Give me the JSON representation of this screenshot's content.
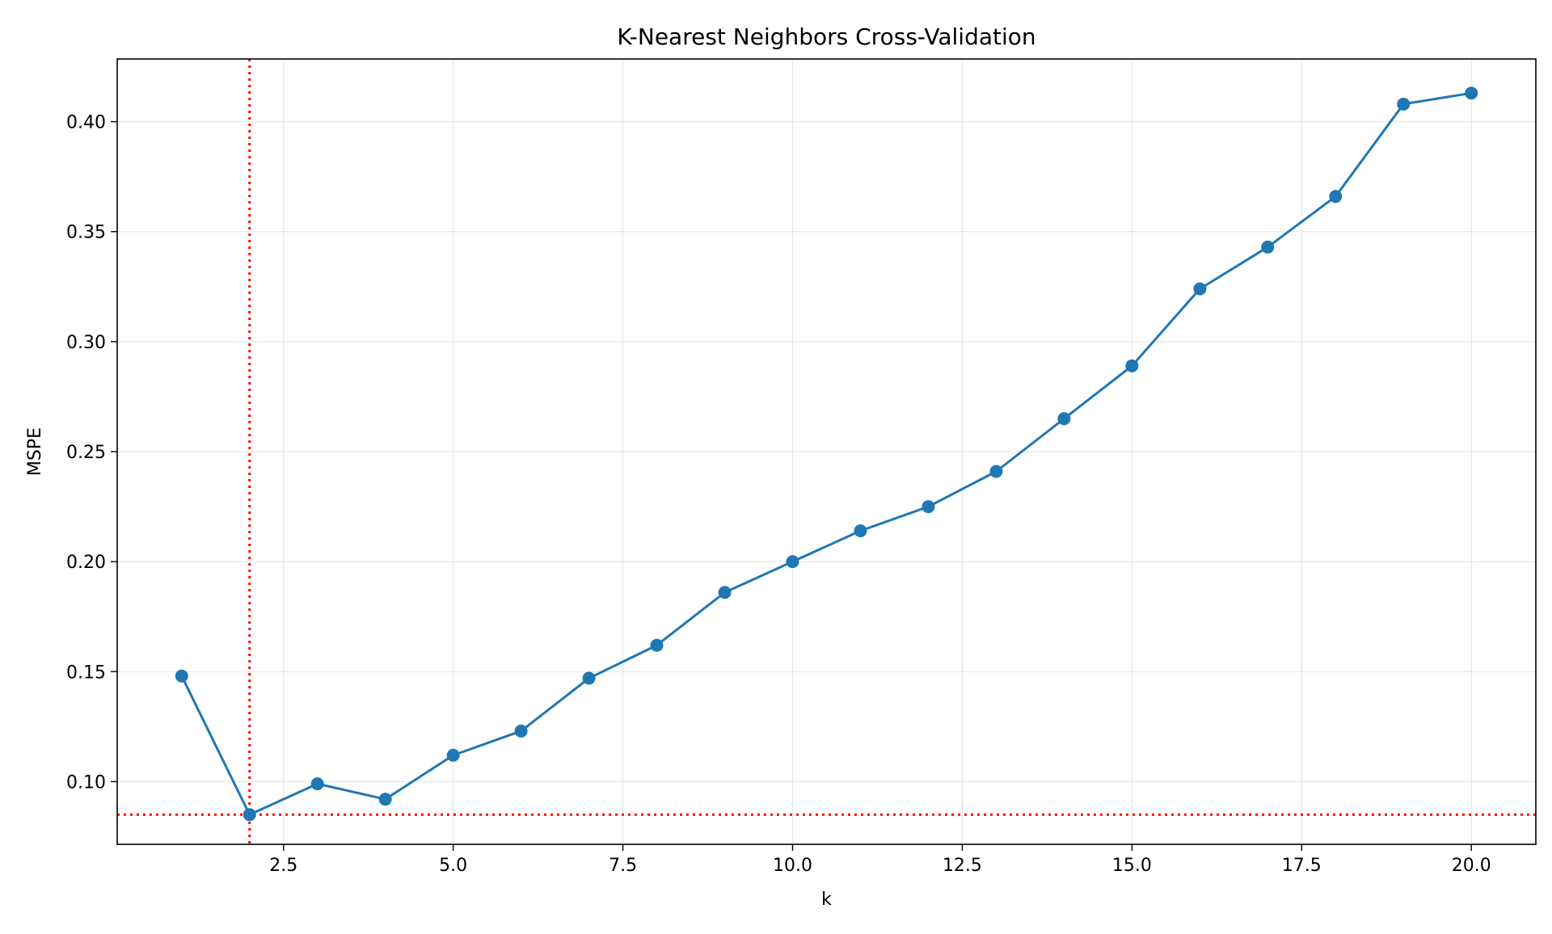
{
  "chart_data": {
    "type": "line",
    "title": "K-Nearest Neighbors Cross-Validation",
    "xlabel": "k",
    "ylabel": "MSPE",
    "xlim": [
      0.05,
      20.95
    ],
    "ylim": [
      0.0715,
      0.4285
    ],
    "x_ticks": [
      {
        "value": 2.5,
        "label": "2.5"
      },
      {
        "value": 5.0,
        "label": "5.0"
      },
      {
        "value": 7.5,
        "label": "7.5"
      },
      {
        "value": 10.0,
        "label": "10.0"
      },
      {
        "value": 12.5,
        "label": "12.5"
      },
      {
        "value": 15.0,
        "label": "15.0"
      },
      {
        "value": 17.5,
        "label": "17.5"
      },
      {
        "value": 20.0,
        "label": "20.0"
      }
    ],
    "y_ticks": [
      {
        "value": 0.1,
        "label": "0.10"
      },
      {
        "value": 0.15,
        "label": "0.15"
      },
      {
        "value": 0.2,
        "label": "0.20"
      },
      {
        "value": 0.25,
        "label": "0.25"
      },
      {
        "value": 0.3,
        "label": "0.30"
      },
      {
        "value": 0.35,
        "label": "0.35"
      },
      {
        "value": 0.4,
        "label": "0.40"
      }
    ],
    "grid": true,
    "series": [
      {
        "color": "#1f77b4",
        "marker": "circle",
        "x": [
          1,
          2,
          3,
          4,
          5,
          6,
          7,
          8,
          9,
          10,
          11,
          12,
          13,
          14,
          15,
          16,
          17,
          18,
          19,
          20
        ],
        "y": [
          0.148,
          0.085,
          0.099,
          0.092,
          0.112,
          0.123,
          0.147,
          0.162,
          0.186,
          0.2,
          0.214,
          0.225,
          0.241,
          0.265,
          0.289,
          0.324,
          0.343,
          0.366,
          0.408,
          0.413
        ]
      }
    ],
    "reference_lines": [
      {
        "orientation": "vertical",
        "value": 2,
        "color": "#ff0000",
        "style": "dotted"
      },
      {
        "orientation": "horizontal",
        "value": 0.085,
        "color": "#ff0000",
        "style": "dotted"
      }
    ]
  }
}
